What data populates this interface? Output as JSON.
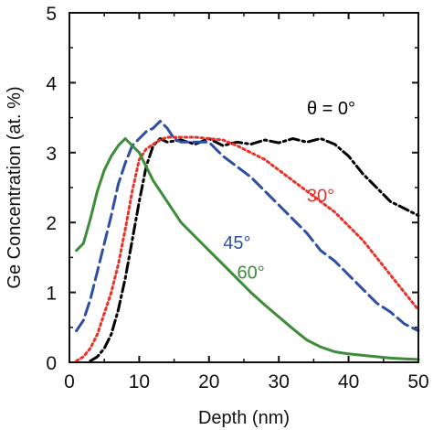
{
  "chart_data": {
    "type": "line",
    "xlabel": "Depth (nm)",
    "ylabel": "Ge Concentration (at. %)",
    "xlim": [
      0,
      50
    ],
    "ylim": [
      0,
      5
    ],
    "x_ticks": [
      "0",
      "10",
      "20",
      "30",
      "40",
      "50"
    ],
    "y_ticks": [
      "0",
      "1",
      "2",
      "3",
      "4",
      "5"
    ],
    "grid": false,
    "series": [
      {
        "name": "θ = 0°",
        "color": "#000000",
        "dash": "dashdot",
        "points": [
          [
            3,
            0.02
          ],
          [
            4,
            0.08
          ],
          [
            5,
            0.2
          ],
          [
            6,
            0.4
          ],
          [
            7,
            0.75
          ],
          [
            8,
            1.2
          ],
          [
            9,
            1.75
          ],
          [
            10,
            2.3
          ],
          [
            11,
            2.8
          ],
          [
            12,
            3.1
          ],
          [
            13,
            3.2
          ],
          [
            14,
            3.15
          ],
          [
            16,
            3.18
          ],
          [
            18,
            3.12
          ],
          [
            20,
            3.2
          ],
          [
            22,
            3.1
          ],
          [
            24,
            3.15
          ],
          [
            26,
            3.12
          ],
          [
            28,
            3.18
          ],
          [
            30,
            3.14
          ],
          [
            32,
            3.2
          ],
          [
            34,
            3.15
          ],
          [
            36,
            3.2
          ],
          [
            38,
            3.12
          ],
          [
            40,
            2.95
          ],
          [
            42,
            2.7
          ],
          [
            44,
            2.5
          ],
          [
            46,
            2.3
          ],
          [
            48,
            2.2
          ],
          [
            50,
            2.1
          ]
        ]
      },
      {
        "name": "30°",
        "color": "#e8332a",
        "dash": "dotted",
        "points": [
          [
            1,
            0.02
          ],
          [
            2,
            0.08
          ],
          [
            3,
            0.2
          ],
          [
            4,
            0.4
          ],
          [
            5,
            0.7
          ],
          [
            6,
            1.0
          ],
          [
            7,
            1.4
          ],
          [
            8,
            1.9
          ],
          [
            9,
            2.45
          ],
          [
            10,
            2.9
          ],
          [
            11,
            3.05
          ],
          [
            12,
            3.12
          ],
          [
            13,
            3.18
          ],
          [
            14,
            3.22
          ],
          [
            16,
            3.22
          ],
          [
            18,
            3.22
          ],
          [
            20,
            3.2
          ],
          [
            22,
            3.18
          ],
          [
            24,
            3.1
          ],
          [
            26,
            3.0
          ],
          [
            28,
            2.9
          ],
          [
            30,
            2.75
          ],
          [
            32,
            2.6
          ],
          [
            34,
            2.45
          ],
          [
            36,
            2.3
          ],
          [
            38,
            2.15
          ],
          [
            40,
            1.95
          ],
          [
            42,
            1.75
          ],
          [
            44,
            1.5
          ],
          [
            46,
            1.25
          ],
          [
            48,
            1.0
          ],
          [
            50,
            0.75
          ]
        ]
      },
      {
        "name": "45°",
        "color": "#2f4fa2",
        "dash": "dashed",
        "points": [
          [
            1,
            0.45
          ],
          [
            2,
            0.6
          ],
          [
            3,
            0.9
          ],
          [
            4,
            1.3
          ],
          [
            5,
            1.7
          ],
          [
            6,
            2.1
          ],
          [
            7,
            2.55
          ],
          [
            8,
            2.85
          ],
          [
            9,
            3.1
          ],
          [
            10,
            3.2
          ],
          [
            11,
            3.3
          ],
          [
            12,
            3.35
          ],
          [
            13,
            3.45
          ],
          [
            14,
            3.35
          ],
          [
            15,
            3.2
          ],
          [
            16,
            3.15
          ],
          [
            18,
            3.15
          ],
          [
            20,
            3.15
          ],
          [
            21,
            3.05
          ],
          [
            22,
            2.95
          ],
          [
            24,
            2.8
          ],
          [
            26,
            2.65
          ],
          [
            28,
            2.45
          ],
          [
            30,
            2.25
          ],
          [
            32,
            2.05
          ],
          [
            34,
            1.85
          ],
          [
            36,
            1.6
          ],
          [
            38,
            1.45
          ],
          [
            40,
            1.25
          ],
          [
            42,
            1.05
          ],
          [
            44,
            0.85
          ],
          [
            46,
            0.72
          ],
          [
            48,
            0.55
          ],
          [
            50,
            0.45
          ]
        ]
      },
      {
        "name": "60°",
        "color": "#3d8c3a",
        "dash": "solid",
        "points": [
          [
            1,
            1.6
          ],
          [
            2,
            1.7
          ],
          [
            3,
            2.05
          ],
          [
            4,
            2.45
          ],
          [
            5,
            2.75
          ],
          [
            6,
            2.95
          ],
          [
            7,
            3.1
          ],
          [
            8,
            3.2
          ],
          [
            9,
            3.1
          ],
          [
            10,
            3.0
          ],
          [
            11,
            2.8
          ],
          [
            12,
            2.6
          ],
          [
            13,
            2.45
          ],
          [
            14,
            2.3
          ],
          [
            15,
            2.15
          ],
          [
            16,
            2.0
          ],
          [
            18,
            1.8
          ],
          [
            20,
            1.6
          ],
          [
            22,
            1.4
          ],
          [
            24,
            1.2
          ],
          [
            26,
            1.0
          ],
          [
            28,
            0.82
          ],
          [
            30,
            0.65
          ],
          [
            32,
            0.48
          ],
          [
            34,
            0.32
          ],
          [
            36,
            0.22
          ],
          [
            38,
            0.15
          ],
          [
            40,
            0.12
          ],
          [
            42,
            0.1
          ],
          [
            44,
            0.08
          ],
          [
            46,
            0.06
          ],
          [
            48,
            0.05
          ],
          [
            50,
            0.04
          ]
        ]
      }
    ],
    "annotations": [
      {
        "text": "θ = 0°",
        "color": "#000000",
        "x": 37.5,
        "y": 3.55
      },
      {
        "text": "30°",
        "color": "#e8332a",
        "x": 36.0,
        "y": 2.3
      },
      {
        "text": "45°",
        "color": "#2f4fa2",
        "x": 24.0,
        "y": 1.62
      },
      {
        "text": "60°",
        "color": "#3d8c3a",
        "x": 26.0,
        "y": 1.2
      }
    ]
  }
}
